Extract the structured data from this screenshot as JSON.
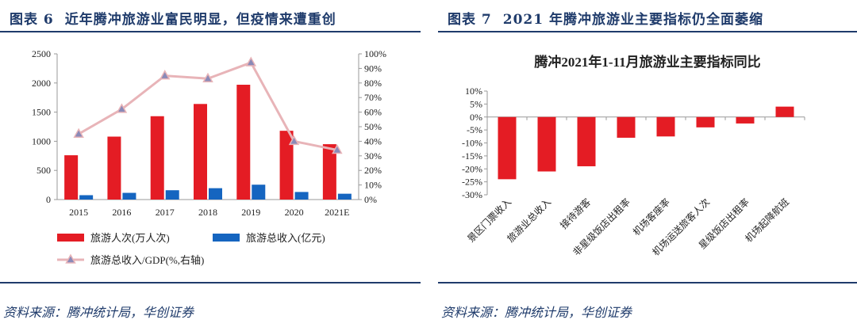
{
  "figures": [
    {
      "label": "图表 6",
      "title": "近年腾冲旅游业富民明显，但疫情来遭重创",
      "source": "资料来源：腾冲统计局，华创证券"
    },
    {
      "label": "图表 7",
      "title": "2021 年腾冲旅游业主要指标仍全面萎缩",
      "source": "资料来源：腾冲统计局，华创证券"
    }
  ],
  "chart_data": [
    {
      "type": "bar",
      "title": "",
      "categories": [
        "2015",
        "2016",
        "2017",
        "2018",
        "2019",
        "2020",
        "2021E"
      ],
      "y_ticks": [
        "0",
        "500",
        "1000",
        "1500",
        "2000",
        "2500"
      ],
      "y2_ticks": [
        "0%",
        "10%",
        "20%",
        "30%",
        "40%",
        "50%",
        "60%",
        "70%",
        "80%",
        "90%",
        "100%"
      ],
      "ylim": [
        0,
        2500
      ],
      "y2lim": [
        0,
        100
      ],
      "series": [
        {
          "name": "旅游人次(万人次)",
          "axis": "left",
          "kind": "bar",
          "color": "#e41c24",
          "values": [
            760,
            1080,
            1430,
            1640,
            1970,
            1180,
            950
          ]
        },
        {
          "name": "旅游总收入(亿元)",
          "axis": "left",
          "kind": "bar",
          "color": "#1565c0",
          "values": [
            75,
            115,
            160,
            195,
            255,
            130,
            100
          ]
        },
        {
          "name": "旅游总收入/GDP(%,右轴)",
          "axis": "right",
          "kind": "line",
          "color": "#e8b4b8",
          "marker_color": "#8a8ab8",
          "values": [
            45,
            62,
            85,
            83,
            94,
            40,
            34
          ]
        }
      ],
      "legend": {
        "items": [
          "旅游人次(万人次)",
          "旅游总收入(亿元)",
          "旅游总收入/GDP(%,右轴)"
        ]
      }
    },
    {
      "type": "bar",
      "title": "腾冲2021年1-11月旅游业主要指标同比",
      "categories": [
        "景区门票收入",
        "旅游业总收入",
        "接待游客",
        "非星级饭店出租率",
        "机场客座率",
        "机场运送旅客人次",
        "星级饭店出租率",
        "机场起降航班"
      ],
      "values": [
        -24,
        -21,
        -19,
        -8,
        -7.5,
        -4,
        -2.5,
        4
      ],
      "y_ticks": [
        "10%",
        "5%",
        "0%",
        "-5%",
        "-10%",
        "-15%",
        "-20%",
        "-25%",
        "-30%"
      ],
      "ylim": [
        -30,
        10
      ],
      "color": "#e41c24"
    }
  ]
}
